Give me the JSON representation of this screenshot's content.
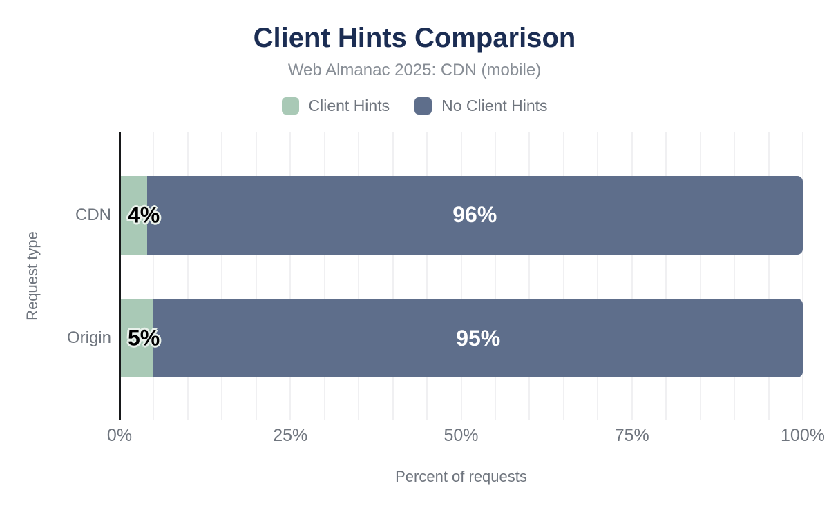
{
  "header": {
    "title": "Client Hints Comparison",
    "subtitle": "Web Almanac 2025: CDN (mobile)"
  },
  "chart_data": {
    "type": "bar",
    "orientation": "horizontal",
    "stacked": true,
    "categories": [
      "CDN",
      "Origin"
    ],
    "series": [
      {
        "name": "Client Hints",
        "color": "#a9c9b6",
        "values": [
          4,
          5
        ]
      },
      {
        "name": "No Client Hints",
        "color": "#5e6e8b",
        "values": [
          96,
          95
        ]
      }
    ],
    "bar_labels": [
      [
        "4%",
        "96%"
      ],
      [
        "5%",
        "95%"
      ]
    ],
    "xlabel": "Percent of requests",
    "ylabel": "Request type",
    "xlim": [
      0,
      100
    ],
    "x_ticks": [
      "0%",
      "25%",
      "50%",
      "75%",
      "100%"
    ],
    "x_tick_positions": [
      0,
      25,
      50,
      75,
      100
    ],
    "grid": true,
    "grid_step_percent": 5,
    "legend_position": "top"
  },
  "colors": {
    "background": "#ffffff",
    "title": "#1b2d53",
    "subtitle": "#878d95",
    "text_muted": "#6f757e",
    "gridline": "#f0f0f2",
    "axis_line": "#17181a",
    "label_on_light": "#000000",
    "label_on_dark": "#ffffff",
    "label_halo": "#e9f1eb"
  }
}
